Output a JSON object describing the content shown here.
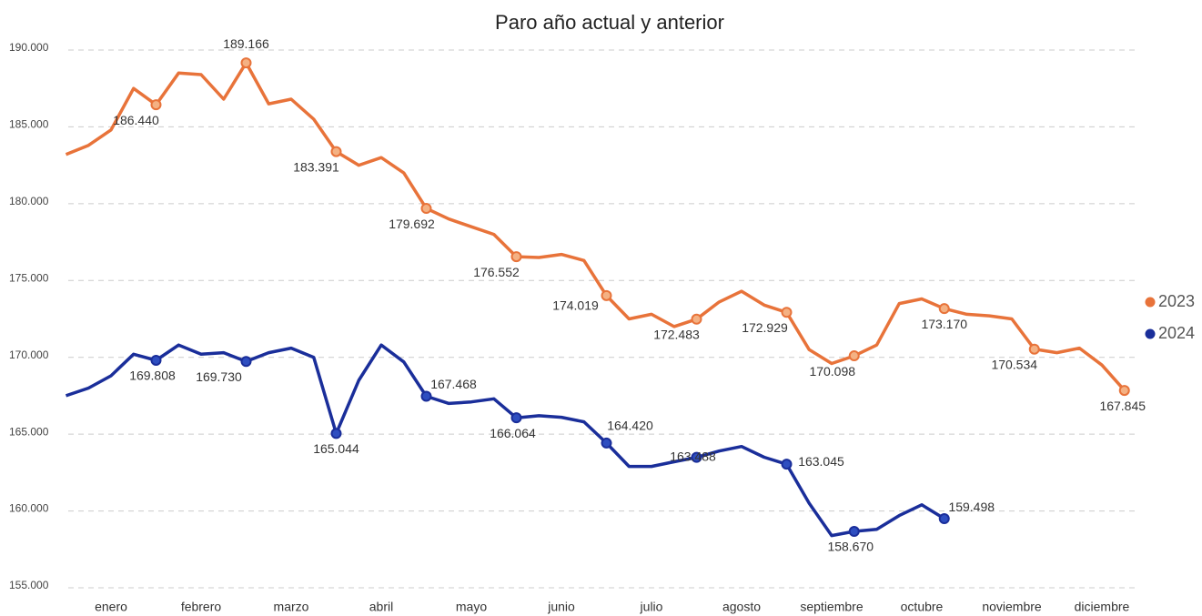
{
  "chart_data": {
    "type": "line",
    "title": "Paro año actual y anterior",
    "categories": [
      null,
      null,
      "enero",
      null,
      null,
      null,
      "febrero",
      null,
      null,
      null,
      "marzo",
      null,
      null,
      null,
      "abril",
      null,
      null,
      null,
      "mayo",
      null,
      null,
      null,
      "junio",
      null,
      null,
      null,
      "julio",
      null,
      null,
      null,
      "agosto",
      null,
      null,
      null,
      "septiembre",
      null,
      null,
      null,
      "octubre",
      null,
      null,
      null,
      "noviembre",
      null,
      null,
      null,
      "diciembre",
      null
    ],
    "ylim": [
      155000,
      190000
    ],
    "yticks": [
      {
        "value": 155000,
        "label": "155.000"
      },
      {
        "value": 160000,
        "label": "160.000"
      },
      {
        "value": 165000,
        "label": "165.000"
      },
      {
        "value": 170000,
        "label": "170.000"
      },
      {
        "value": 175000,
        "label": "175.000"
      },
      {
        "value": 180000,
        "label": "180.000"
      },
      {
        "value": 185000,
        "label": "185.000"
      },
      {
        "value": 190000,
        "label": "190.000"
      }
    ],
    "grid": true,
    "legend": "right",
    "series": [
      {
        "name": "2023",
        "color": "#e8733a",
        "marker_fill": "#f4b183",
        "values": [
          183200,
          183800,
          184800,
          187500,
          186440,
          188500,
          188400,
          186800,
          189166,
          186500,
          186800,
          185500,
          183391,
          182500,
          183000,
          182000,
          179692,
          179000,
          178500,
          178000,
          176552,
          176500,
          176700,
          176300,
          174019,
          172500,
          172800,
          172000,
          172483,
          173600,
          174300,
          173400,
          172929,
          170500,
          169600,
          170098,
          170800,
          173500,
          173800,
          173170,
          172800,
          172700,
          172500,
          170534,
          170300,
          170600,
          169500,
          167845
        ],
        "value_labels": [
          null,
          null,
          null,
          null,
          "186.440",
          null,
          null,
          null,
          "189.166",
          null,
          null,
          null,
          "183.391",
          null,
          null,
          null,
          "179.692",
          null,
          null,
          null,
          "176.552",
          null,
          null,
          null,
          "174.019",
          null,
          null,
          null,
          "172.483",
          null,
          null,
          null,
          "172.929",
          null,
          null,
          "170.098",
          null,
          null,
          null,
          "173.170",
          null,
          null,
          null,
          "170.534",
          null,
          null,
          null,
          "167.845"
        ]
      },
      {
        "name": "2024",
        "color": "#1a2e9a",
        "marker_fill": "#2e4ec0",
        "values": [
          167500,
          168000,
          168800,
          170200,
          169808,
          170800,
          170200,
          170300,
          169730,
          170300,
          170600,
          170000,
          165044,
          168500,
          170800,
          169700,
          167468,
          167000,
          167100,
          167300,
          166064,
          166200,
          166100,
          165800,
          164420,
          162900,
          162900,
          163200,
          163488,
          163900,
          164200,
          163500,
          163045,
          160500,
          158400,
          158670,
          158800,
          159700,
          160400,
          159498,
          null,
          null,
          null,
          null,
          null,
          null,
          null,
          null
        ],
        "value_labels": [
          null,
          null,
          null,
          null,
          "169.808",
          null,
          null,
          null,
          "169.730",
          null,
          null,
          null,
          "165.044",
          null,
          null,
          null,
          "167.468",
          null,
          null,
          null,
          "166.064",
          null,
          null,
          null,
          "164.420",
          null,
          null,
          null,
          "163.488",
          null,
          null,
          null,
          "163.045",
          null,
          null,
          "158.670",
          null,
          null,
          null,
          "159.498",
          null,
          null,
          null,
          null,
          null,
          null,
          null,
          null
        ]
      }
    ]
  }
}
